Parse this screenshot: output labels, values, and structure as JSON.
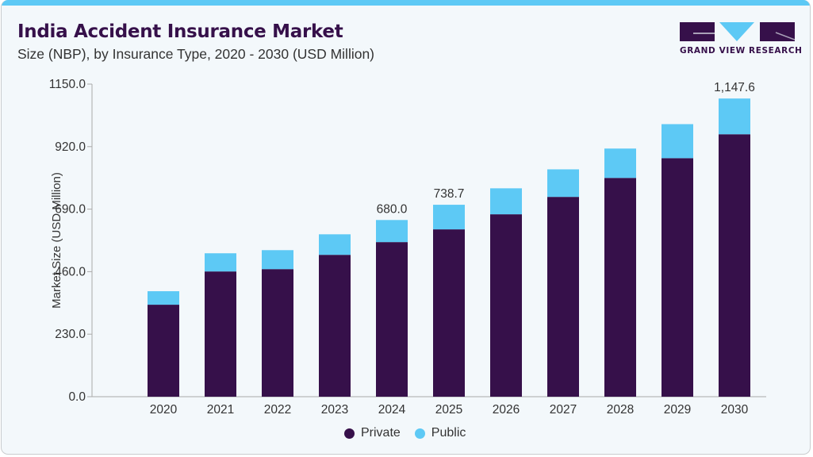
{
  "header": {
    "title": "India Accident Insurance Market",
    "subtitle": "Size (NBP), by Insurance Type, 2020 - 2030 (USD Million)"
  },
  "logo": {
    "text": "GRAND VIEW RESEARCH"
  },
  "colors": {
    "private": "#36104a",
    "public": "#5dc9f5",
    "accent": "#5dc9f5",
    "text": "#333333"
  },
  "chart_data": {
    "type": "bar",
    "stacked": true,
    "title": "India Accident Insurance Market",
    "subtitle": "Size (NBP), by Insurance Type, 2020 - 2030 (USD Million)",
    "xlabel": "",
    "ylabel": "Market Size (USD Million)",
    "ylim": [
      0,
      1150
    ],
    "yticks": [
      "0.0",
      "230.0",
      "460.0",
      "690.0",
      "920.0",
      "1150.0"
    ],
    "ytick_values": [
      0,
      230,
      460,
      690,
      920,
      1150
    ],
    "grid": false,
    "legend_position": "bottom-center",
    "categories": [
      "2020",
      "2021",
      "2022",
      "2023",
      "2024",
      "2025",
      "2026",
      "2027",
      "2028",
      "2029",
      "2030"
    ],
    "series": [
      {
        "name": "Private",
        "color": "#36104a",
        "values": [
          354,
          482,
          491,
          546,
          595,
          644,
          702,
          769,
          842,
          918,
          1010
        ]
      },
      {
        "name": "Public",
        "color": "#5dc9f5",
        "values": [
          52,
          70,
          73,
          79,
          85,
          94.7,
          100,
          106,
          113,
          131,
          137.6
        ]
      }
    ],
    "data_labels": [
      {
        "category": "2024",
        "text": "680.0"
      },
      {
        "category": "2025",
        "text": "738.7"
      },
      {
        "category": "2030",
        "text": "1,147.6"
      }
    ]
  }
}
